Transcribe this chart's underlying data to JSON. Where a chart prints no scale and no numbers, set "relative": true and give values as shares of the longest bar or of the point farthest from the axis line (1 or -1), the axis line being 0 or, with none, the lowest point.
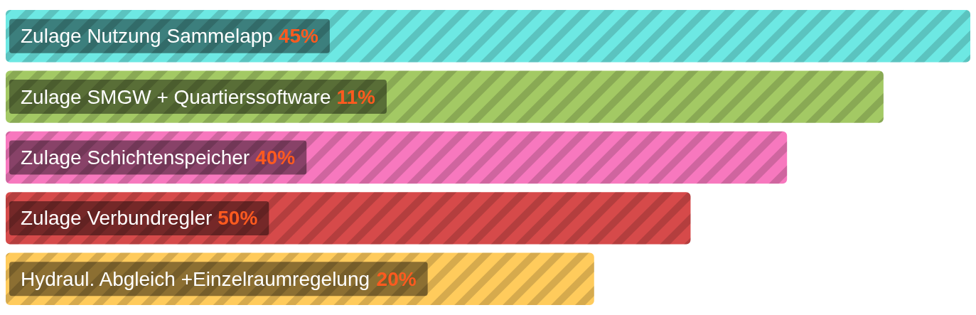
{
  "chart_data": {
    "type": "bar",
    "orientation": "horizontal",
    "relative": true,
    "categories": [
      "Zulage Nutzung Sammelapp 45%",
      "Zulage SMGW + Quartierssoftware 11%",
      "Zulage Schichtenspeicher 40%",
      "Zulage Verbundregler 50%",
      "Hydraul. Abgleich +Einzelraumregelung 20%"
    ],
    "values": [
      1,
      0.91,
      0.81,
      0.71,
      0.61
    ],
    "colors": [
      "#6de8e3",
      "#a3c964",
      "#f778be",
      "#d64a4a",
      "#ffcb5c"
    ]
  }
}
